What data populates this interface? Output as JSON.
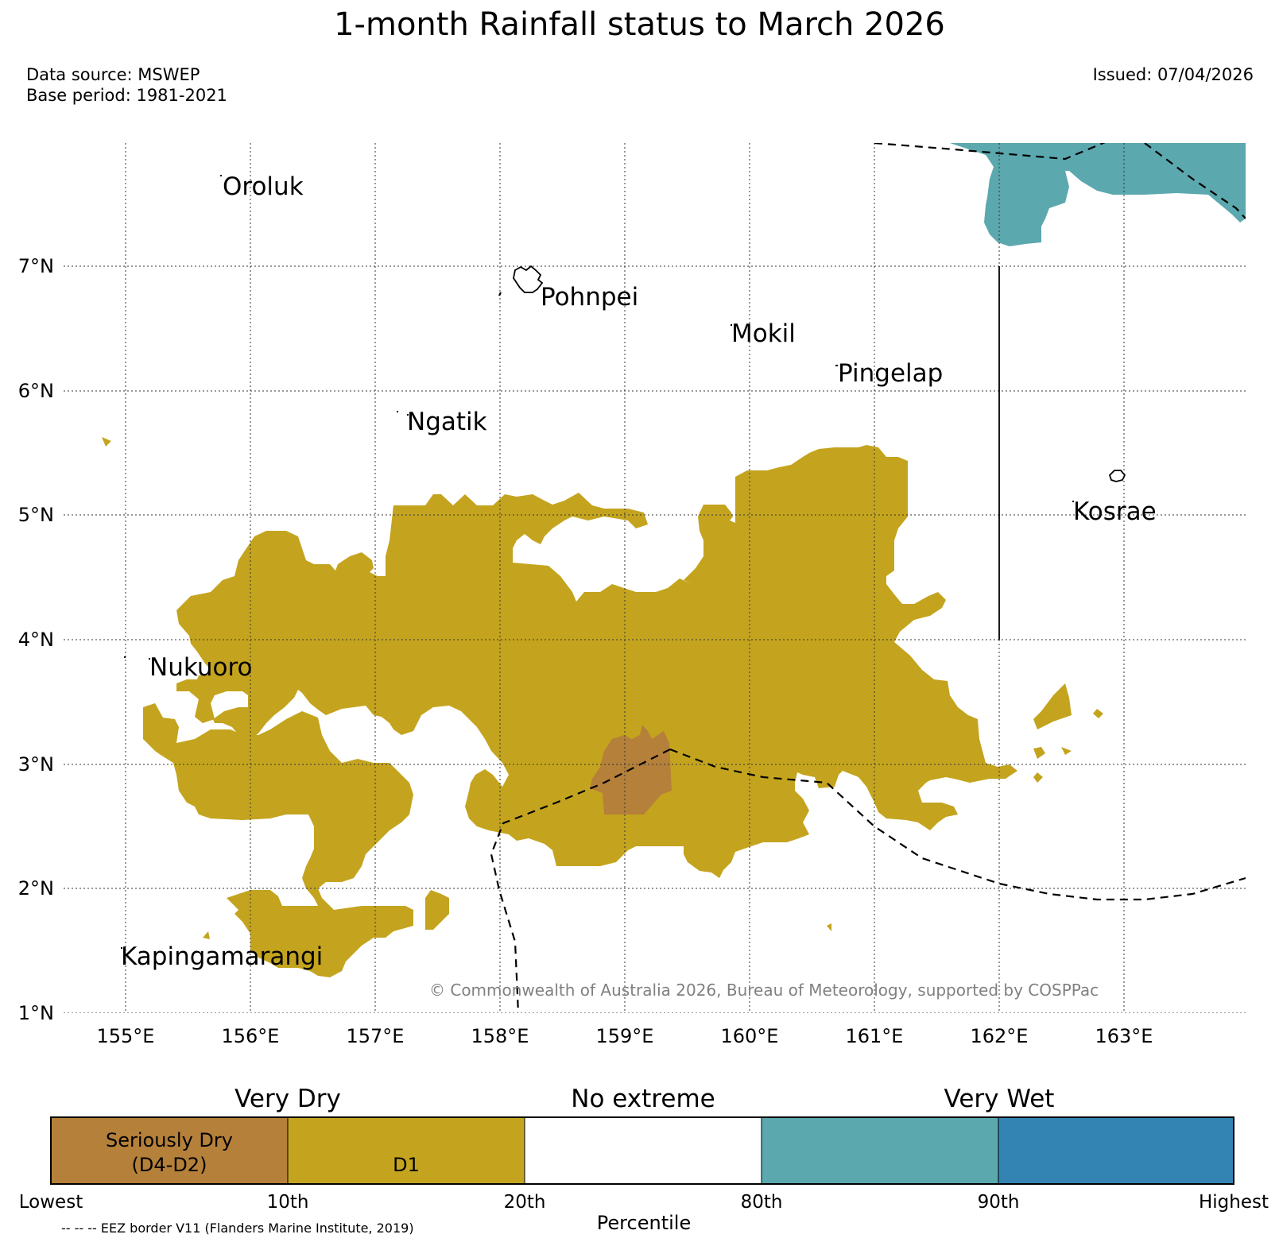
{
  "header": {
    "title": "1-month Rainfall status to March 2026",
    "data_source": "Data source: MSWEP",
    "base_period": "Base period: 1981-2021",
    "issued": "Issued: 07/04/2026"
  },
  "map": {
    "lon_labels": [
      "155°E",
      "156°E",
      "157°E",
      "158°E",
      "159°E",
      "160°E",
      "161°E",
      "162°E",
      "163°E"
    ],
    "lat_labels": [
      "7°N",
      "6°N",
      "5°N",
      "4°N",
      "3°N",
      "2°N",
      "1°N"
    ],
    "places": [
      "Oroluk",
      "Pohnpei",
      "Mokil",
      "Pingelap",
      "Ngatik",
      "Kosrae",
      "Nukuoro",
      "Kapingamarangi"
    ],
    "copyright": "© Commonwealth of Australia 2026, Bureau of Meteorology, supported by COSPPac",
    "colors": {
      "seriously_dry": "#b5803a",
      "d1": "#c4a41e",
      "very_wet": "#5ba8ae",
      "highest": "#3384b3",
      "no_extreme": "#ffffff"
    }
  },
  "legend": {
    "headers": [
      "Very Dry",
      "No extreme",
      "Very Wet"
    ],
    "segments": [
      {
        "label_line1": "Seriously Dry",
        "label_line2": "(D4-D2)"
      },
      {
        "label_line1": "",
        "label_line2": "D1"
      },
      {
        "label_line1": "",
        "label_line2": ""
      },
      {
        "label_line1": "",
        "label_line2": ""
      },
      {
        "label_line1": "",
        "label_line2": ""
      }
    ],
    "ticks": [
      "Lowest",
      "10th",
      "20th",
      "80th",
      "90th",
      "Highest"
    ],
    "xlabel": "Percentile",
    "eez_note": "-- -- -- EEZ border V11 (Flanders Marine Institute, 2019)"
  }
}
